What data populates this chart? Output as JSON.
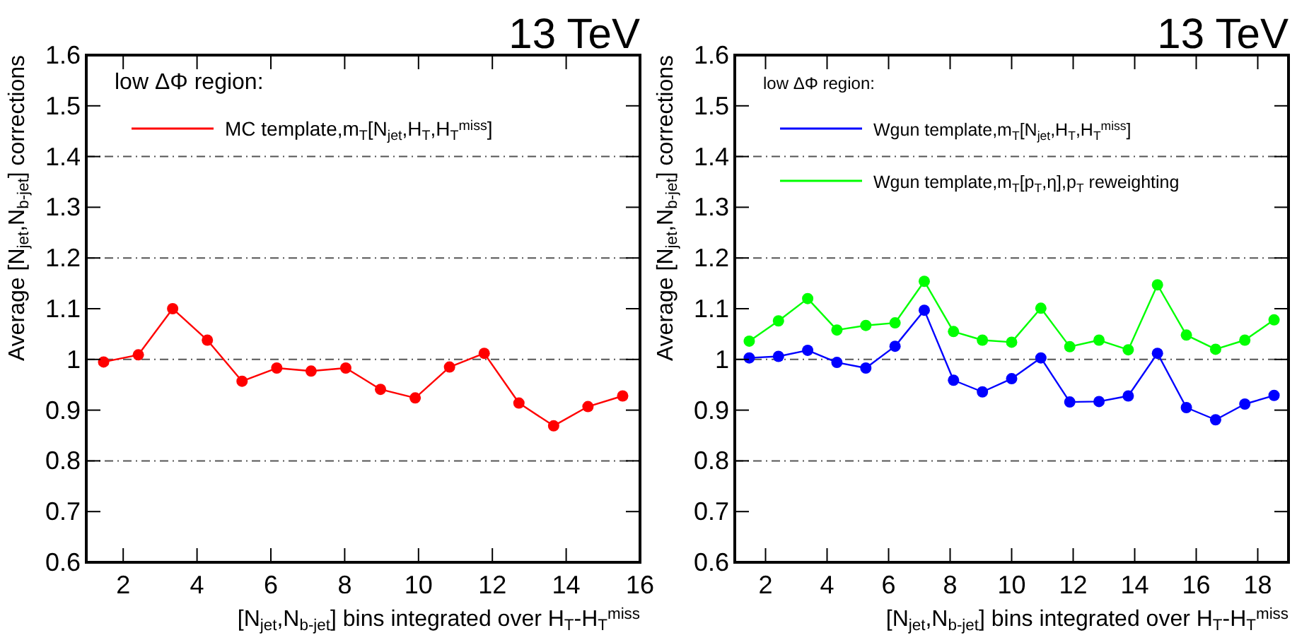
{
  "chart_data": [
    {
      "type": "line",
      "title": "13 TeV",
      "legend_title": "low ΔΦ region:",
      "xlabel": "[N$_{jet}$,N$_{b-jet}$] bins integrated over H$_{T}$-H$_{T}$$^{miss}$",
      "ylabel": "Average [N$_{jet}$,N$_{b-jet}$] corrections",
      "xlim": [
        1,
        16
      ],
      "xticks": [
        2,
        4,
        6,
        8,
        10,
        12,
        14,
        16
      ],
      "ylim": [
        0.6,
        1.6
      ],
      "yticks": [
        0.6,
        0.7,
        0.8,
        0.9,
        {
          "value": 1,
          "label": "1"
        },
        1.1,
        1.2,
        1.3,
        1.4,
        1.5,
        1.6
      ],
      "marker": "circle",
      "line_style": "solid",
      "ref_lines": [
        {
          "axis": "y",
          "value": 0.8,
          "color": "#555555",
          "line_style": "dashed"
        },
        {
          "axis": "y",
          "value": 1,
          "color": "#555555",
          "line_style": "dashed"
        },
        {
          "axis": "y",
          "value": 1.2,
          "color": "#555555",
          "line_style": "dashed"
        },
        {
          "axis": "y",
          "value": 1.4,
          "color": "#555555",
          "line_style": "dashed"
        }
      ],
      "series": [
        {
          "name": "MC template,m$_{T}$[N$_{jet}$,H$_{T}$,H$_{T}$$^{miss}$]",
          "color": "#ff0000",
          "x": [
            1.47,
            2.41,
            3.34,
            4.28,
            5.22,
            6.16,
            7.09,
            8.03,
            8.97,
            9.91,
            10.84,
            11.78,
            12.72,
            13.66,
            14.59,
            15.53
          ],
          "values": [
            0.995,
            1.009,
            1.1,
            1.038,
            0.957,
            0.983,
            0.977,
            0.983,
            0.941,
            0.924,
            0.985,
            1.012,
            0.914,
            0.869,
            0.907,
            0.928
          ]
        }
      ]
    },
    {
      "type": "line",
      "title": "13 TeV",
      "legend_title": "low ΔΦ region:",
      "xlabel": "[N$_{jet}$,N$_{b-jet}$] bins integrated over H$_{T}$-H$_{T}$$^{miss}$",
      "ylabel": "Average [N$_{jet}$,N$_{b-jet}$] corrections",
      "xlim": [
        1,
        19
      ],
      "xticks": [
        2,
        4,
        6,
        8,
        10,
        12,
        14,
        16,
        18
      ],
      "ylim": [
        0.6,
        1.6
      ],
      "yticks": [
        0.6,
        0.7,
        0.8,
        0.9,
        {
          "value": 1,
          "label": "1"
        },
        1.1,
        1.2,
        1.3,
        1.4,
        1.5,
        1.6
      ],
      "marker": "circle",
      "line_style": "solid",
      "legend": "top left",
      "ref_lines": [
        {
          "axis": "y",
          "value": 0.8,
          "color": "#555555",
          "line_style": "dashed"
        },
        {
          "axis": "y",
          "value": 1,
          "color": "#555555",
          "line_style": "dashed"
        },
        {
          "axis": "y",
          "value": 1.2,
          "color": "#555555",
          "line_style": "dashed"
        },
        {
          "axis": "y",
          "value": 1.4,
          "color": "#555555",
          "line_style": "dashed"
        }
      ],
      "series": [
        {
          "name": "Wgun template,m$_{T}$[N$_{jet}$,H$_{T}$,H$_{T}$$^{miss}$]",
          "color": "#0000ff",
          "x": [
            1.47,
            2.42,
            3.37,
            4.32,
            5.26,
            6.21,
            7.16,
            8.11,
            9.05,
            10.0,
            10.95,
            11.89,
            12.84,
            13.79,
            14.74,
            15.68,
            16.63,
            17.58,
            18.53
          ],
          "values": [
            1.003,
            1.006,
            1.018,
            0.994,
            0.983,
            1.026,
            1.097,
            0.959,
            0.936,
            0.962,
            1.003,
            0.916,
            0.917,
            0.928,
            1.012,
            0.905,
            0.881,
            0.912,
            0.929
          ]
        },
        {
          "name": "Wgun template,m$_{T}$[p$_{T}$,η],p$_{T}$ reweighting",
          "color": "#00ff00",
          "x": [
            1.47,
            2.42,
            3.37,
            4.32,
            5.26,
            6.21,
            7.16,
            8.11,
            9.05,
            10.0,
            10.95,
            11.89,
            12.84,
            13.79,
            14.74,
            15.68,
            16.63,
            17.58,
            18.53
          ],
          "values": [
            1.036,
            1.076,
            1.12,
            1.058,
            1.067,
            1.072,
            1.154,
            1.055,
            1.038,
            1.034,
            1.101,
            1.025,
            1.038,
            1.019,
            1.147,
            1.048,
            1.02,
            1.038,
            1.078
          ]
        }
      ]
    }
  ]
}
